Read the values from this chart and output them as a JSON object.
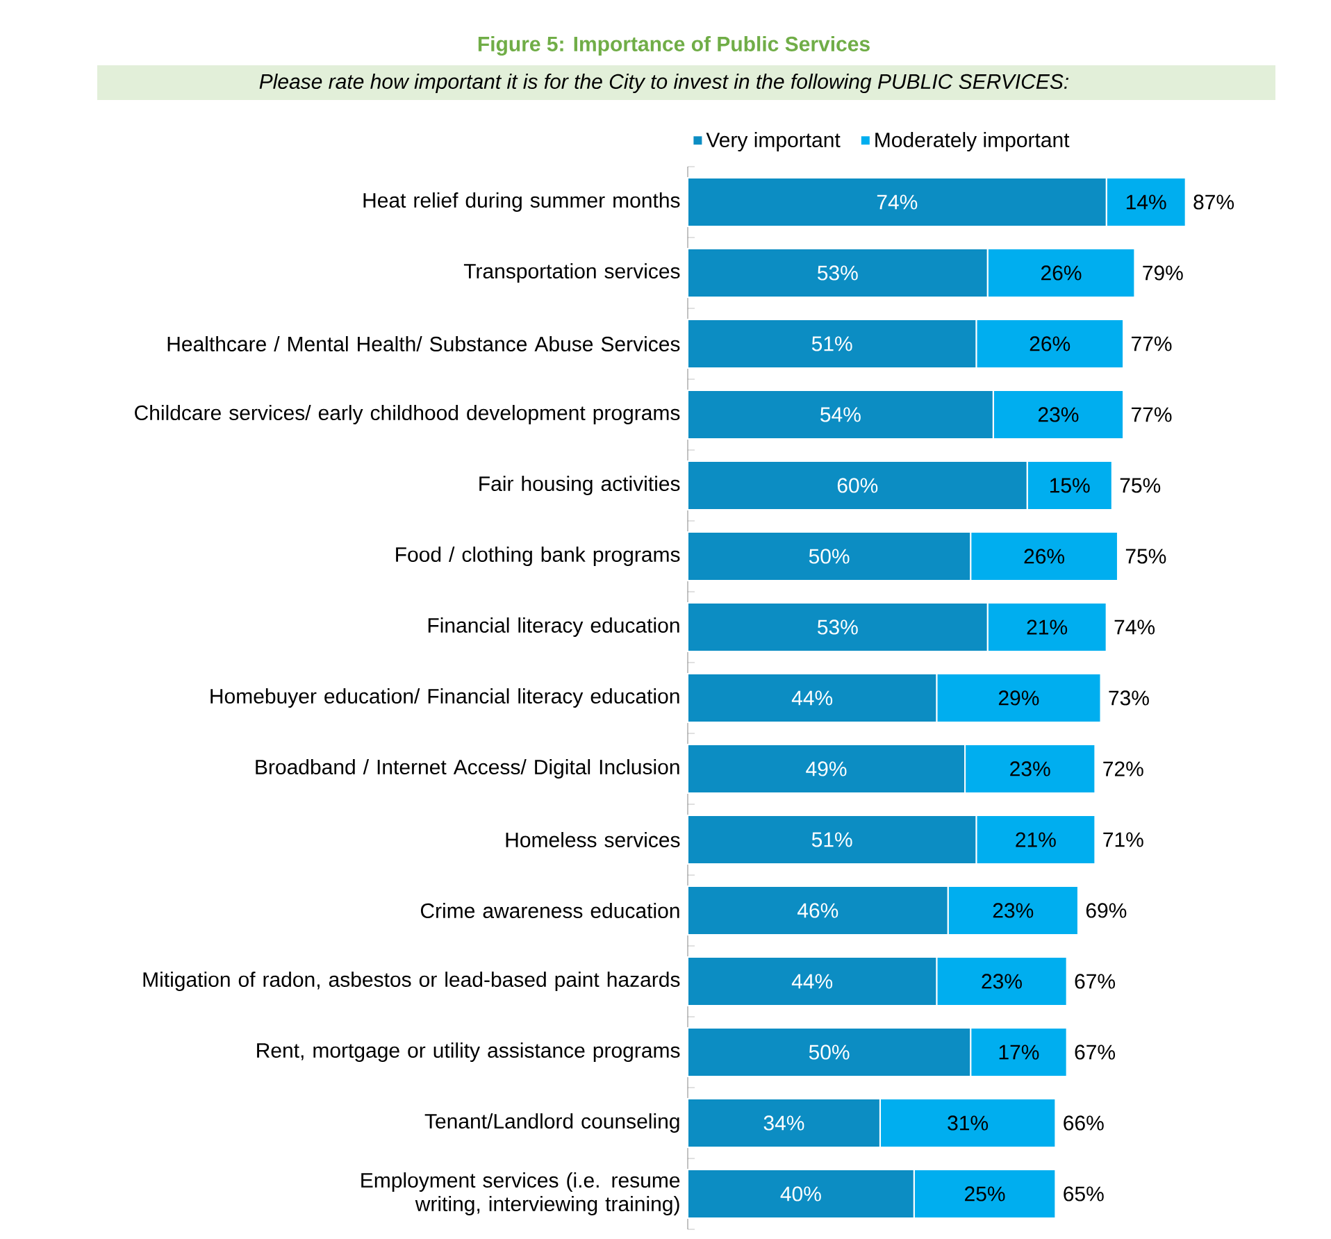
{
  "chart_data": {
    "type": "bar",
    "orientation": "horizontal",
    "stacked": true,
    "title": "Figure 5: Importance of Public Services",
    "subtitle": "Please rate how important it is for the City to invest in the following PUBLIC SERVICES:",
    "categories": [
      "Heat relief during summer months",
      "Transportation services",
      "Healthcare / Mental Health/ Substance Abuse Services",
      "Childcare services/ early childhood development programs",
      "Fair housing activities",
      "Food / clothing bank programs",
      "Financial literacy education",
      "Homebuyer education/ Financial literacy education",
      "Broadband / Internet Access/ Digital Inclusion",
      "Homeless services",
      "Crime awareness education",
      "Mitigation of radon, asbestos or lead-based paint hazards",
      "Rent, mortgage or utility assistance programs",
      "Tenant/Landlord counseling",
      "Employment services (i.e. resume writing, interviewing training)"
    ],
    "series": [
      {
        "name": "Very important",
        "color": "#0c8dc3",
        "values": [
          74,
          53,
          51,
          54,
          60,
          50,
          53,
          44,
          49,
          51,
          46,
          44,
          50,
          34,
          40
        ],
        "value_labels": [
          "74%",
          "53%",
          "51%",
          "54%",
          "60%",
          "50%",
          "53%",
          "44%",
          "49%",
          "51%",
          "46%",
          "44%",
          "50%",
          "34%",
          "40%"
        ]
      },
      {
        "name": "Moderately important",
        "color": "#00aeef",
        "values": [
          14,
          26,
          26,
          23,
          15,
          26,
          21,
          29,
          23,
          21,
          23,
          23,
          17,
          31,
          25
        ],
        "value_labels": [
          "14%",
          "26%",
          "26%",
          "23%",
          "15%",
          "26%",
          "21%",
          "29%",
          "23%",
          "21%",
          "23%",
          "23%",
          "17%",
          "31%",
          "25%"
        ]
      }
    ],
    "totals": [
      "87%",
      "79%",
      "77%",
      "77%",
      "75%",
      "75%",
      "74%",
      "73%",
      "72%",
      "71%",
      "69%",
      "67%",
      "67%",
      "66%",
      "65%"
    ],
    "legend": "top left"
  }
}
